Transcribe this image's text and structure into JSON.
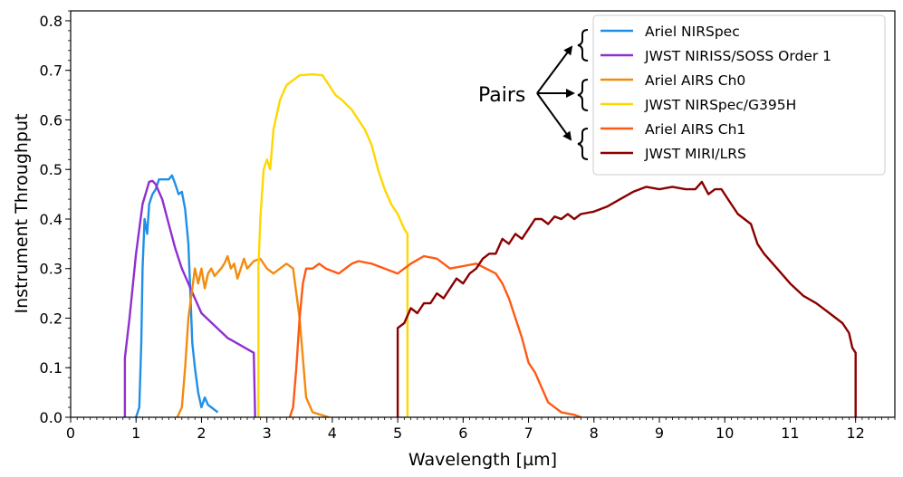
{
  "chart_data": {
    "type": "line",
    "title": "",
    "xlabel": "Wavelength [µm]",
    "ylabel": "Instrument Throughput",
    "xlim": [
      0,
      12.6
    ],
    "ylim": [
      0,
      0.82
    ],
    "xticks": [
      0,
      1,
      2,
      3,
      4,
      5,
      6,
      7,
      8,
      9,
      10,
      11,
      12
    ],
    "yticks": [
      0.0,
      0.1,
      0.2,
      0.3,
      0.4,
      0.5,
      0.6,
      0.7,
      0.8
    ],
    "xtick_labels": [
      "0",
      "1",
      "2",
      "3",
      "4",
      "5",
      "6",
      "7",
      "8",
      "9",
      "10",
      "11",
      "12"
    ],
    "ytick_labels": [
      "0.0",
      "0.1",
      "0.2",
      "0.3",
      "0.4",
      "0.5",
      "0.6",
      "0.7",
      "0.8"
    ],
    "grid": false,
    "legend_position": "top-right",
    "annotation": {
      "text": "Pairs",
      "note": "arrows point to legend pairs"
    },
    "series": [
      {
        "name": "Ariel NIRSpec",
        "color": "#1f8fe8",
        "points": [
          [
            1.0,
            0.0
          ],
          [
            1.05,
            0.02
          ],
          [
            1.08,
            0.15
          ],
          [
            1.1,
            0.3
          ],
          [
            1.13,
            0.4
          ],
          [
            1.17,
            0.37
          ],
          [
            1.2,
            0.43
          ],
          [
            1.25,
            0.45
          ],
          [
            1.3,
            0.46
          ],
          [
            1.35,
            0.48
          ],
          [
            1.45,
            0.48
          ],
          [
            1.5,
            0.48
          ],
          [
            1.55,
            0.488
          ],
          [
            1.6,
            0.47
          ],
          [
            1.65,
            0.45
          ],
          [
            1.7,
            0.455
          ],
          [
            1.75,
            0.42
          ],
          [
            1.8,
            0.35
          ],
          [
            1.83,
            0.25
          ],
          [
            1.86,
            0.15
          ],
          [
            1.9,
            0.1
          ],
          [
            1.95,
            0.05
          ],
          [
            2.0,
            0.02
          ],
          [
            2.05,
            0.04
          ],
          [
            2.1,
            0.025
          ],
          [
            2.15,
            0.02
          ],
          [
            2.2,
            0.015
          ],
          [
            2.25,
            0.01
          ]
        ]
      },
      {
        "name": "JWST NIRISS/SOSS Order 1",
        "color": "#8f2fd0",
        "points": [
          [
            0.83,
            0.0
          ],
          [
            0.83,
            0.12
          ],
          [
            0.9,
            0.2
          ],
          [
            1.0,
            0.33
          ],
          [
            1.1,
            0.43
          ],
          [
            1.2,
            0.475
          ],
          [
            1.25,
            0.477
          ],
          [
            1.3,
            0.47
          ],
          [
            1.4,
            0.44
          ],
          [
            1.5,
            0.39
          ],
          [
            1.6,
            0.34
          ],
          [
            1.7,
            0.3
          ],
          [
            1.8,
            0.27
          ],
          [
            1.9,
            0.24
          ],
          [
            2.0,
            0.21
          ],
          [
            2.2,
            0.185
          ],
          [
            2.4,
            0.16
          ],
          [
            2.6,
            0.145
          ],
          [
            2.8,
            0.13
          ],
          [
            2.82,
            0.0
          ]
        ]
      },
      {
        "name": "Ariel AIRS Ch0",
        "color": "#f28c0f",
        "points": [
          [
            1.63,
            0.0
          ],
          [
            1.7,
            0.02
          ],
          [
            1.75,
            0.1
          ],
          [
            1.8,
            0.2
          ],
          [
            1.85,
            0.25
          ],
          [
            1.9,
            0.3
          ],
          [
            1.95,
            0.27
          ],
          [
            2.0,
            0.3
          ],
          [
            2.05,
            0.26
          ],
          [
            2.1,
            0.29
          ],
          [
            2.15,
            0.3
          ],
          [
            2.2,
            0.285
          ],
          [
            2.3,
            0.3
          ],
          [
            2.35,
            0.31
          ],
          [
            2.4,
            0.325
          ],
          [
            2.45,
            0.3
          ],
          [
            2.5,
            0.31
          ],
          [
            2.55,
            0.28
          ],
          [
            2.6,
            0.3
          ],
          [
            2.65,
            0.32
          ],
          [
            2.7,
            0.3
          ],
          [
            2.8,
            0.315
          ],
          [
            2.9,
            0.32
          ],
          [
            3.0,
            0.3
          ],
          [
            3.1,
            0.29
          ],
          [
            3.2,
            0.3
          ],
          [
            3.3,
            0.31
          ],
          [
            3.4,
            0.3
          ],
          [
            3.45,
            0.25
          ],
          [
            3.5,
            0.2
          ],
          [
            3.55,
            0.12
          ],
          [
            3.6,
            0.04
          ],
          [
            3.7,
            0.01
          ],
          [
            3.95,
            0.0
          ]
        ]
      },
      {
        "name": "JWST NIRSpec/G395H",
        "color": "#ffd700",
        "points": [
          [
            2.87,
            0.0
          ],
          [
            2.87,
            0.3
          ],
          [
            2.9,
            0.4
          ],
          [
            2.95,
            0.5
          ],
          [
            3.0,
            0.52
          ],
          [
            3.05,
            0.5
          ],
          [
            3.1,
            0.58
          ],
          [
            3.2,
            0.64
          ],
          [
            3.3,
            0.67
          ],
          [
            3.5,
            0.69
          ],
          [
            3.7,
            0.692
          ],
          [
            3.85,
            0.69
          ],
          [
            3.95,
            0.67
          ],
          [
            4.05,
            0.65
          ],
          [
            4.15,
            0.64
          ],
          [
            4.3,
            0.62
          ],
          [
            4.5,
            0.58
          ],
          [
            4.6,
            0.55
          ],
          [
            4.7,
            0.5
          ],
          [
            4.8,
            0.46
          ],
          [
            4.9,
            0.43
          ],
          [
            5.0,
            0.41
          ],
          [
            5.1,
            0.38
          ],
          [
            5.15,
            0.37
          ],
          [
            5.15,
            0.0
          ]
        ]
      },
      {
        "name": "Ariel AIRS Ch1",
        "color": "#ff5a14",
        "points": [
          [
            3.35,
            0.0
          ],
          [
            3.4,
            0.02
          ],
          [
            3.45,
            0.1
          ],
          [
            3.5,
            0.2
          ],
          [
            3.55,
            0.27
          ],
          [
            3.6,
            0.3
          ],
          [
            3.7,
            0.3
          ],
          [
            3.8,
            0.31
          ],
          [
            3.9,
            0.3
          ],
          [
            4.0,
            0.295
          ],
          [
            4.1,
            0.29
          ],
          [
            4.2,
            0.3
          ],
          [
            4.3,
            0.31
          ],
          [
            4.4,
            0.315
          ],
          [
            4.6,
            0.31
          ],
          [
            4.8,
            0.3
          ],
          [
            5.0,
            0.29
          ],
          [
            5.1,
            0.3
          ],
          [
            5.2,
            0.31
          ],
          [
            5.4,
            0.325
          ],
          [
            5.6,
            0.32
          ],
          [
            5.8,
            0.3
          ],
          [
            6.0,
            0.305
          ],
          [
            6.2,
            0.31
          ],
          [
            6.35,
            0.3
          ],
          [
            6.5,
            0.29
          ],
          [
            6.6,
            0.27
          ],
          [
            6.7,
            0.24
          ],
          [
            6.8,
            0.2
          ],
          [
            6.9,
            0.16
          ],
          [
            7.0,
            0.11
          ],
          [
            7.1,
            0.09
          ],
          [
            7.2,
            0.06
          ],
          [
            7.3,
            0.03
          ],
          [
            7.5,
            0.01
          ],
          [
            7.7,
            0.005
          ],
          [
            7.8,
            0.0
          ]
        ]
      },
      {
        "name": "JWST MIRI/LRS",
        "color": "#8b0000",
        "points": [
          [
            5.0,
            0.0
          ],
          [
            5.0,
            0.18
          ],
          [
            5.1,
            0.19
          ],
          [
            5.2,
            0.22
          ],
          [
            5.3,
            0.21
          ],
          [
            5.4,
            0.23
          ],
          [
            5.5,
            0.23
          ],
          [
            5.6,
            0.25
          ],
          [
            5.7,
            0.24
          ],
          [
            5.8,
            0.26
          ],
          [
            5.9,
            0.28
          ],
          [
            6.0,
            0.27
          ],
          [
            6.1,
            0.29
          ],
          [
            6.2,
            0.3
          ],
          [
            6.3,
            0.32
          ],
          [
            6.4,
            0.33
          ],
          [
            6.5,
            0.33
          ],
          [
            6.6,
            0.36
          ],
          [
            6.7,
            0.35
          ],
          [
            6.8,
            0.37
          ],
          [
            6.9,
            0.36
          ],
          [
            7.0,
            0.38
          ],
          [
            7.1,
            0.4
          ],
          [
            7.2,
            0.4
          ],
          [
            7.3,
            0.39
          ],
          [
            7.4,
            0.405
          ],
          [
            7.5,
            0.4
          ],
          [
            7.6,
            0.41
          ],
          [
            7.7,
            0.4
          ],
          [
            7.8,
            0.41
          ],
          [
            8.0,
            0.415
          ],
          [
            8.2,
            0.425
          ],
          [
            8.4,
            0.44
          ],
          [
            8.6,
            0.455
          ],
          [
            8.8,
            0.465
          ],
          [
            9.0,
            0.46
          ],
          [
            9.2,
            0.465
          ],
          [
            9.4,
            0.46
          ],
          [
            9.55,
            0.46
          ],
          [
            9.65,
            0.475
          ],
          [
            9.75,
            0.45
          ],
          [
            9.85,
            0.46
          ],
          [
            9.95,
            0.46
          ],
          [
            10.05,
            0.44
          ],
          [
            10.2,
            0.41
          ],
          [
            10.4,
            0.39
          ],
          [
            10.5,
            0.35
          ],
          [
            10.6,
            0.33
          ],
          [
            10.8,
            0.3
          ],
          [
            11.0,
            0.27
          ],
          [
            11.2,
            0.245
          ],
          [
            11.4,
            0.23
          ],
          [
            11.6,
            0.21
          ],
          [
            11.8,
            0.19
          ],
          [
            11.9,
            0.17
          ],
          [
            11.95,
            0.14
          ],
          [
            12.0,
            0.13
          ],
          [
            12.0,
            0.0
          ]
        ]
      }
    ]
  }
}
